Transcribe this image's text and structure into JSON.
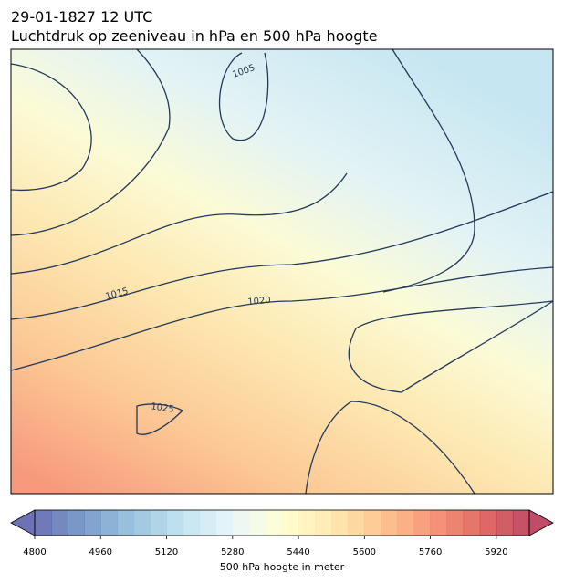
{
  "header": {
    "title": "29-01-1827 12 UTC",
    "subtitle": "Luchtdruk op zeeniveau in hPa en 500 hPa hoogte"
  },
  "map": {
    "isobar_labels": [
      "1005",
      "1015",
      "1020",
      "1025"
    ]
  },
  "colorbar": {
    "range": [
      4800,
      6000
    ],
    "ticks": [
      4800,
      4960,
      5120,
      5280,
      5440,
      5600,
      5760,
      5920
    ],
    "label": "500 hPa hoogte in meter"
  }
}
